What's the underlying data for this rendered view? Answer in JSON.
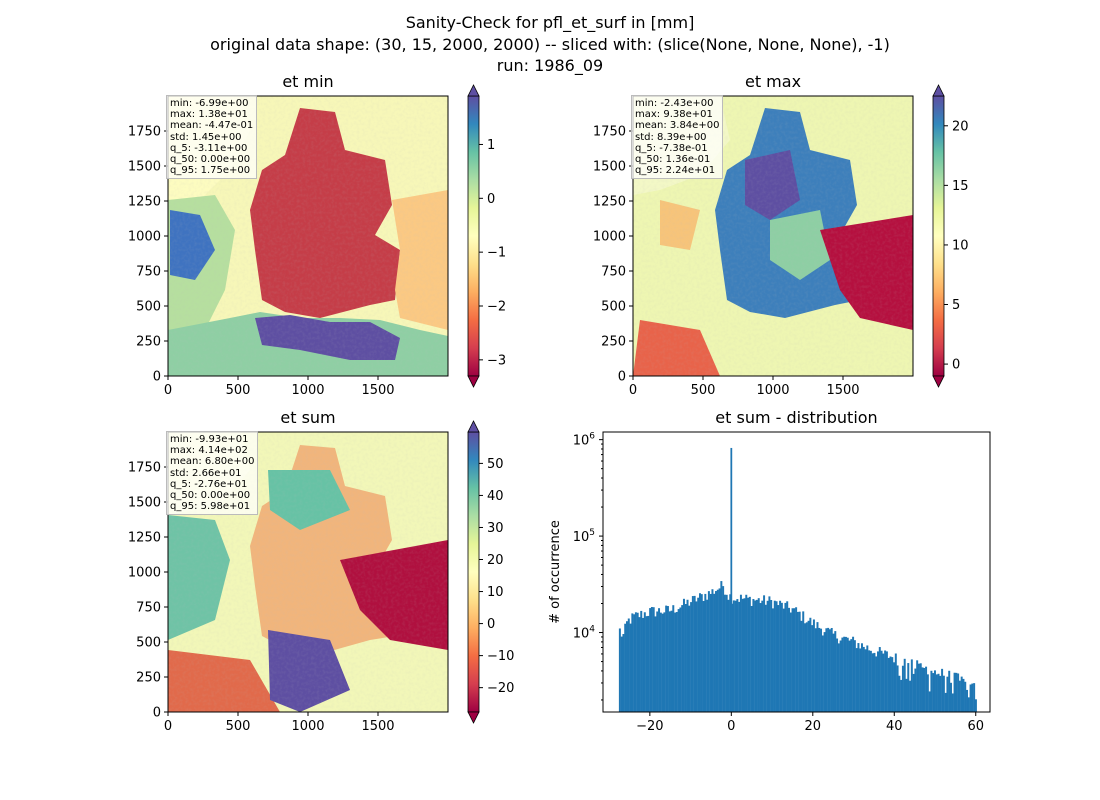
{
  "suptitle": {
    "line1": "Sanity-Check for pfl_et_surf in [mm]",
    "line2": "original data shape: (30, 15, 2000, 2000) -- sliced with: (slice(None, None, None), -1)",
    "line3": "run: 1986_09"
  },
  "colormap": {
    "name": "Spectral",
    "under": "#9e0142",
    "over": "#5e4fa2",
    "stops": [
      "#9e0142",
      "#d53e4f",
      "#f46d43",
      "#fdae61",
      "#fee08b",
      "#ffffbf",
      "#e6f598",
      "#abdda4",
      "#66c2a5",
      "#3288bd",
      "#5e4fa2"
    ]
  },
  "panels": [
    {
      "title": "et min",
      "stats": [
        "min: -6.99e+00",
        "max: 1.38e+01",
        "mean: -4.47e-01",
        "std: 1.45e+00",
        "q_5: -3.11e+00",
        "q_50: 0.00e+00",
        "q_95: 1.75e+00"
      ],
      "x_ticks": [
        "0",
        "500",
        "1000",
        "1500"
      ],
      "y_ticks": [
        "0",
        "250",
        "500",
        "750",
        "1000",
        "1250",
        "1500",
        "1750"
      ],
      "colorbar": {
        "vmin": -3.3,
        "vmax": 1.9,
        "ticks": [
          "1",
          "0",
          "−1",
          "−2",
          "−3"
        ],
        "tick_values": [
          1,
          0,
          -1,
          -2,
          -3
        ]
      }
    },
    {
      "title": "et max",
      "stats": [
        "min: -2.43e+00",
        "max: 9.38e+01",
        "mean: 3.84e+00",
        "std: 8.39e+00",
        "q_5: -7.38e-01",
        "q_50: 1.36e-01",
        "q_95: 2.24e+01"
      ],
      "x_ticks": [
        "0",
        "500",
        "1000",
        "1500"
      ],
      "y_ticks": [
        "0",
        "250",
        "500",
        "750",
        "1000",
        "1250",
        "1500",
        "1750"
      ],
      "colorbar": {
        "vmin": -1.0,
        "vmax": 22.5,
        "ticks": [
          "20",
          "15",
          "10",
          "5",
          "0"
        ],
        "tick_values": [
          20,
          15,
          10,
          5,
          0
        ]
      }
    },
    {
      "title": "et sum",
      "stats": [
        "min: -9.93e+01",
        "max: 4.14e+02",
        "mean: 6.80e+00",
        "std: 2.66e+01",
        "q_5: -2.76e+01",
        "q_50: 0.00e+00",
        "q_95: 5.98e+01"
      ],
      "x_ticks": [
        "0",
        "500",
        "1000",
        "1500"
      ],
      "y_ticks": [
        "0",
        "250",
        "500",
        "750",
        "1000",
        "1250",
        "1500",
        "1750"
      ],
      "colorbar": {
        "vmin": -27.6,
        "vmax": 59.8,
        "ticks": [
          "50",
          "40",
          "30",
          "20",
          "10",
          "0",
          "−10",
          "−20"
        ],
        "tick_values": [
          50,
          40,
          30,
          20,
          10,
          0,
          -10,
          -20
        ]
      }
    }
  ],
  "chart_data": {
    "type": "bar",
    "title": "et sum - distribution",
    "xlabel": "",
    "ylabel": "# of occurrence",
    "yscale": "log",
    "xlim": [
      -31.5,
      63.5
    ],
    "ylim": [
      1500,
      1200000
    ],
    "x_ticks": [
      "−20",
      "0",
      "20",
      "40",
      "60"
    ],
    "x_tick_values": [
      -20,
      0,
      20,
      40,
      60
    ],
    "y_ticks": [
      {
        "base": "10",
        "exp": "4",
        "value": 10000
      },
      {
        "base": "10",
        "exp": "5",
        "value": 100000
      },
      {
        "base": "10",
        "exp": "6",
        "value": 1000000
      }
    ],
    "color": "#1f77b4",
    "bin_range": [
      -27.6,
      59.8
    ],
    "bin_width": 0.437,
    "shape_anchors": [
      [
        -27.6,
        11000
      ],
      [
        -26.6,
        9000
      ],
      [
        -25.5,
        13000
      ],
      [
        -24,
        14500
      ],
      [
        -20,
        16500
      ],
      [
        -15,
        17000
      ],
      [
        -10,
        21000
      ],
      [
        -5,
        26000
      ],
      [
        -2,
        31000
      ],
      [
        -0.6,
        24000
      ],
      [
        0.6,
        23000
      ],
      [
        5,
        22000
      ],
      [
        10,
        21000
      ],
      [
        15,
        17500
      ],
      [
        20,
        12500
      ],
      [
        25,
        9500
      ],
      [
        30,
        8000
      ],
      [
        35,
        6500
      ],
      [
        40,
        5500
      ],
      [
        45,
        4600
      ],
      [
        50,
        3900
      ],
      [
        55,
        3400
      ],
      [
        59.8,
        2600
      ]
    ],
    "spike": {
      "x": 0,
      "value": 820000
    }
  }
}
